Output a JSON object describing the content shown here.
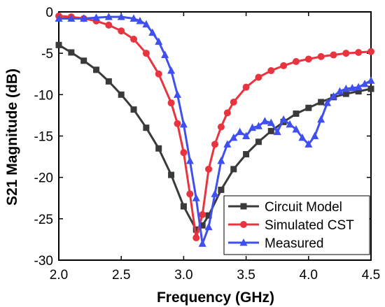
{
  "chart_data": {
    "type": "line",
    "title": "",
    "xlabel": "Frequency  (GHz)",
    "ylabel": "S21 Magnitude (dB)",
    "xlim": [
      2.0,
      4.5
    ],
    "ylim": [
      -30,
      0
    ],
    "xticks": [
      "2.0",
      "2.5",
      "3.0",
      "3.5",
      "4.0",
      "4.5"
    ],
    "yticks": [
      "0",
      "-5",
      "-10",
      "-15",
      "-20",
      "-25",
      "-30"
    ],
    "grid": false,
    "legend_position": "bottom-right",
    "series": [
      {
        "name": "Circuit Model",
        "color": "#3a3a3a",
        "marker": "square",
        "x": [
          2.0,
          2.1,
          2.2,
          2.3,
          2.4,
          2.5,
          2.6,
          2.7,
          2.8,
          2.9,
          3.0,
          3.1,
          3.15,
          3.2,
          3.3,
          3.4,
          3.5,
          3.6,
          3.7,
          3.8,
          3.9,
          4.0,
          4.1,
          4.2,
          4.3,
          4.4,
          4.5
        ],
        "y": [
          -4.0,
          -4.9,
          -5.9,
          -7.0,
          -8.4,
          -10.0,
          -11.8,
          -14.0,
          -16.5,
          -19.7,
          -23.5,
          -26.3,
          -25.8,
          -24.6,
          -21.5,
          -19.0,
          -17.2,
          -15.7,
          -14.4,
          -13.3,
          -12.3,
          -11.6,
          -10.9,
          -10.3,
          -9.9,
          -9.6,
          -9.3
        ]
      },
      {
        "name": "Simulated CST",
        "color": "#e8343f",
        "marker": "circle",
        "x": [
          2.0,
          2.1,
          2.2,
          2.3,
          2.4,
          2.5,
          2.6,
          2.7,
          2.8,
          2.9,
          2.95,
          3.0,
          3.05,
          3.1,
          3.15,
          3.2,
          3.25,
          3.3,
          3.35,
          3.4,
          3.5,
          3.6,
          3.7,
          3.8,
          3.9,
          4.0,
          4.1,
          4.2,
          4.3,
          4.4,
          4.5
        ],
        "y": [
          -0.5,
          -0.6,
          -0.8,
          -1.1,
          -1.6,
          -2.3,
          -3.3,
          -5.0,
          -7.5,
          -11.0,
          -13.5,
          -17.0,
          -22.0,
          -27.3,
          -24.5,
          -19.0,
          -16.0,
          -13.9,
          -12.2,
          -10.9,
          -9.1,
          -7.9,
          -7.1,
          -6.5,
          -6.0,
          -5.7,
          -5.4,
          -5.2,
          -5.0,
          -4.9,
          -4.8
        ]
      },
      {
        "name": "Measured",
        "color": "#3f4ff0",
        "marker": "triangle",
        "x": [
          2.0,
          2.1,
          2.2,
          2.3,
          2.4,
          2.5,
          2.6,
          2.65,
          2.7,
          2.75,
          2.8,
          2.85,
          2.9,
          2.95,
          3.0,
          3.05,
          3.1,
          3.15,
          3.2,
          3.25,
          3.3,
          3.35,
          3.4,
          3.45,
          3.5,
          3.55,
          3.6,
          3.65,
          3.7,
          3.75,
          3.8,
          3.85,
          3.9,
          3.95,
          4.0,
          4.05,
          4.1,
          4.15,
          4.2,
          4.25,
          4.3,
          4.35,
          4.4,
          4.45,
          4.5
        ],
        "y": [
          -0.8,
          -0.8,
          -0.8,
          -0.7,
          -0.6,
          -0.6,
          -0.8,
          -1.1,
          -1.5,
          -2.5,
          -3.6,
          -5.2,
          -7.1,
          -10.0,
          -13.6,
          -18.0,
          -22.5,
          -28.0,
          -26.0,
          -22.0,
          -18.0,
          -16.0,
          -15.2,
          -14.5,
          -15.0,
          -14.0,
          -13.8,
          -13.2,
          -13.4,
          -14.5,
          -13.0,
          -13.6,
          -14.2,
          -15.2,
          -16.0,
          -15.0,
          -13.0,
          -11.0,
          -10.2,
          -9.6,
          -9.3,
          -9.2,
          -9.1,
          -8.7,
          -8.3
        ]
      }
    ]
  }
}
